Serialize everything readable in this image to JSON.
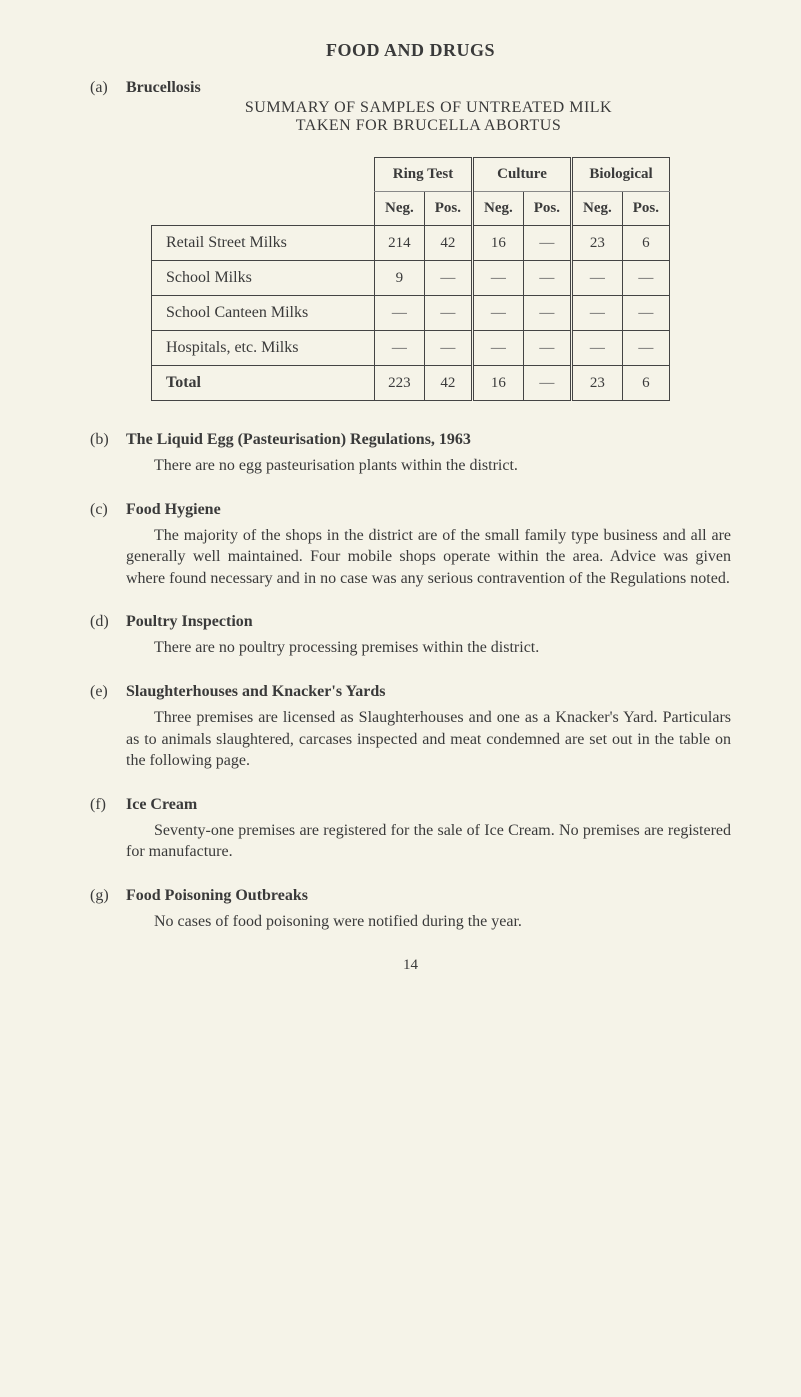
{
  "title": "FOOD AND DRUGS",
  "a": {
    "label": "(a)",
    "heading": "Brucellosis",
    "line1": "SUMMARY OF SAMPLES OF UNTREATED MILK",
    "line2": "TAKEN FOR BRUCELLA ABORTUS"
  },
  "table": {
    "col_groups": [
      "Ring Test",
      "Culture",
      "Biological"
    ],
    "sub_cols": [
      "Neg.",
      "Pos.",
      "Neg.",
      "Pos.",
      "Neg.",
      "Pos."
    ],
    "rows": [
      {
        "label": "Retail Street Milks",
        "cells": [
          "214",
          "42",
          "16",
          "—",
          "23",
          "6"
        ]
      },
      {
        "label": "School Milks",
        "cells": [
          "9",
          "—",
          "—",
          "—",
          "—",
          "—"
        ]
      },
      {
        "label": "School Canteen Milks",
        "cells": [
          "—",
          "—",
          "—",
          "—",
          "—",
          "—"
        ]
      },
      {
        "label": "Hospitals, etc. Milks",
        "cells": [
          "—",
          "—",
          "—",
          "—",
          "—",
          "—"
        ]
      }
    ],
    "total": {
      "label": "Total",
      "cells": [
        "223",
        "42",
        "16",
        "—",
        "23",
        "6"
      ]
    }
  },
  "b": {
    "label": "(b)",
    "title": "The Liquid Egg (Pasteurisation) Regulations, 1963",
    "body": "There are no egg pasteurisation plants within the district."
  },
  "c": {
    "label": "(c)",
    "title": "Food Hygiene",
    "body": "The majority of the shops in the district are of the small family type business and all are generally well maintained. Four mobile shops operate within the area. Advice was given where found necessary and in no case was any serious contravention of the Regulations noted."
  },
  "d": {
    "label": "(d)",
    "title": "Poultry Inspection",
    "body": "There are no poultry processing premises within the district."
  },
  "e": {
    "label": "(e)",
    "title": "Slaughterhouses and Knacker's Yards",
    "body": "Three premises are licensed as Slaughterhouses and one as a Knacker's Yard. Particulars as to animals slaughtered, carcases inspected and meat condemned are set out in the table on the following page."
  },
  "f": {
    "label": "(f)",
    "title": "Ice Cream",
    "body": "Seventy-one premises are registered for the sale of Ice Cream. No premises are registered for manufacture."
  },
  "g": {
    "label": "(g)",
    "title": "Food Poisoning Outbreaks",
    "body": "No cases of food poisoning were notified during the year."
  },
  "pagenum": "14"
}
